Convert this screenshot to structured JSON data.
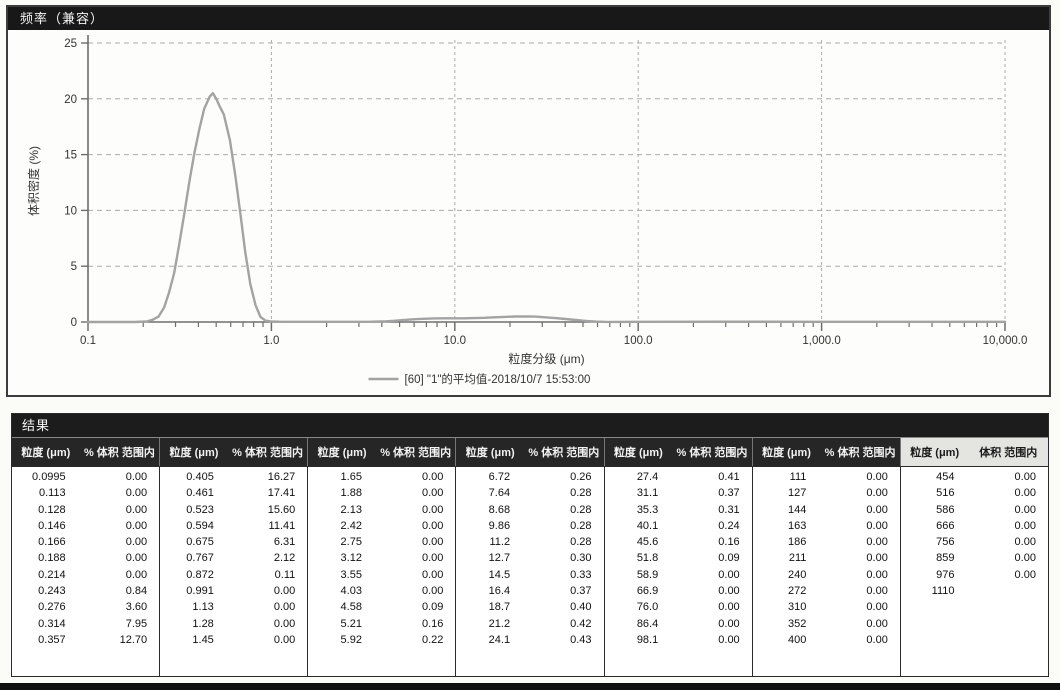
{
  "chart": {
    "title": "频率（兼容）",
    "y_axis_label": "体积密度 (%)",
    "x_axis_label": "粒度分级 (μm)",
    "legend_label": "[60] \"1\"的平均值-2018/10/7 15:53:00",
    "curve_color": "#a3a3a3",
    "grid_color": "#ababab",
    "axis_color": "#6e6e6e",
    "y_ticks": [
      0,
      5,
      10,
      15,
      20,
      25
    ],
    "x_tick_labels": [
      "0.1",
      "1.0",
      "10.0",
      "100.0",
      "1,000.0",
      "10,000.0"
    ],
    "x_tick_values": [
      0.1,
      1,
      10,
      100,
      1000,
      10000
    ]
  },
  "chart_data": {
    "type": "line",
    "title": "频率（兼容）",
    "xlabel": "粒度分级 (μm)",
    "ylabel": "体积密度 (%)",
    "x_scale": "log",
    "xlim": [
      0.1,
      10000
    ],
    "ylim": [
      0,
      25
    ],
    "grid": true,
    "legend_position": "bottom",
    "series": [
      {
        "name": "[60] \"1\"的平均值-2018/10/7 15:53:00",
        "x": [
          0.1,
          0.18,
          0.21,
          0.225,
          0.243,
          0.26,
          0.276,
          0.295,
          0.314,
          0.335,
          0.357,
          0.38,
          0.405,
          0.43,
          0.461,
          0.48,
          0.5,
          0.523,
          0.55,
          0.594,
          0.635,
          0.675,
          0.72,
          0.767,
          0.82,
          0.872,
          0.93,
          0.991,
          1.1,
          1.3,
          1.65,
          2.5,
          3.5,
          4.2,
          4.58,
          5.21,
          5.92,
          6.72,
          7.64,
          8.68,
          9.86,
          11.2,
          12.7,
          14.5,
          16.4,
          18.7,
          21.2,
          24.1,
          27.4,
          31.1,
          35.3,
          40.1,
          45.6,
          51.8,
          58.9,
          66.9,
          76,
          100,
          300,
          1000,
          3000,
          10000
        ],
        "y": [
          0,
          0,
          0.05,
          0.2,
          0.5,
          1.3,
          2.6,
          4.4,
          6.9,
          9.7,
          12.6,
          15.1,
          17.3,
          19.1,
          20.2,
          20.5,
          20.0,
          19.3,
          18.6,
          16.3,
          13.2,
          9.9,
          6.3,
          3.4,
          1.5,
          0.45,
          0.12,
          0.05,
          0.03,
          0.02,
          0.02,
          0.02,
          0.03,
          0.06,
          0.1,
          0.17,
          0.24,
          0.29,
          0.32,
          0.33,
          0.33,
          0.33,
          0.35,
          0.38,
          0.42,
          0.46,
          0.49,
          0.5,
          0.48,
          0.42,
          0.35,
          0.27,
          0.18,
          0.1,
          0.04,
          0.01,
          0.01,
          0.02,
          0.03,
          0.02,
          0.02,
          0.02
        ]
      }
    ]
  },
  "results": {
    "title": "结果",
    "size_header": "粒度 (μm)",
    "pct_header": "% 体积 范围内",
    "pct_header_last": "体积 范围内",
    "groups": [
      {
        "rows": [
          [
            "0.0995",
            "0.00"
          ],
          [
            "0.113",
            "0.00"
          ],
          [
            "0.128",
            "0.00"
          ],
          [
            "0.146",
            "0.00"
          ],
          [
            "0.166",
            "0.00"
          ],
          [
            "0.188",
            "0.00"
          ],
          [
            "0.214",
            "0.00"
          ],
          [
            "0.243",
            "0.84"
          ],
          [
            "0.276",
            "3.60"
          ],
          [
            "0.314",
            "7.95"
          ],
          [
            "0.357",
            "12.70"
          ]
        ]
      },
      {
        "rows": [
          [
            "0.405",
            "16.27"
          ],
          [
            "0.461",
            "17.41"
          ],
          [
            "0.523",
            "15.60"
          ],
          [
            "0.594",
            "11.41"
          ],
          [
            "0.675",
            "6.31"
          ],
          [
            "0.767",
            "2.12"
          ],
          [
            "0.872",
            "0.11"
          ],
          [
            "0.991",
            "0.00"
          ],
          [
            "1.13",
            "0.00"
          ],
          [
            "1.28",
            "0.00"
          ],
          [
            "1.45",
            "0.00"
          ]
        ]
      },
      {
        "rows": [
          [
            "1.65",
            "0.00"
          ],
          [
            "1.88",
            "0.00"
          ],
          [
            "2.13",
            "0.00"
          ],
          [
            "2.42",
            "0.00"
          ],
          [
            "2.75",
            "0.00"
          ],
          [
            "3.12",
            "0.00"
          ],
          [
            "3.55",
            "0.00"
          ],
          [
            "4.03",
            "0.00"
          ],
          [
            "4.58",
            "0.09"
          ],
          [
            "5.21",
            "0.16"
          ],
          [
            "5.92",
            "0.22"
          ]
        ]
      },
      {
        "rows": [
          [
            "6.72",
            "0.26"
          ],
          [
            "7.64",
            "0.28"
          ],
          [
            "8.68",
            "0.28"
          ],
          [
            "9.86",
            "0.28"
          ],
          [
            "11.2",
            "0.28"
          ],
          [
            "12.7",
            "0.30"
          ],
          [
            "14.5",
            "0.33"
          ],
          [
            "16.4",
            "0.37"
          ],
          [
            "18.7",
            "0.40"
          ],
          [
            "21.2",
            "0.42"
          ],
          [
            "24.1",
            "0.43"
          ]
        ]
      },
      {
        "rows": [
          [
            "27.4",
            "0.41"
          ],
          [
            "31.1",
            "0.37"
          ],
          [
            "35.3",
            "0.31"
          ],
          [
            "40.1",
            "0.24"
          ],
          [
            "45.6",
            "0.16"
          ],
          [
            "51.8",
            "0.09"
          ],
          [
            "58.9",
            "0.00"
          ],
          [
            "66.9",
            "0.00"
          ],
          [
            "76.0",
            "0.00"
          ],
          [
            "86.4",
            "0.00"
          ],
          [
            "98.1",
            "0.00"
          ]
        ]
      },
      {
        "rows": [
          [
            "111",
            "0.00"
          ],
          [
            "127",
            "0.00"
          ],
          [
            "144",
            "0.00"
          ],
          [
            "163",
            "0.00"
          ],
          [
            "186",
            "0.00"
          ],
          [
            "211",
            "0.00"
          ],
          [
            "240",
            "0.00"
          ],
          [
            "272",
            "0.00"
          ],
          [
            "310",
            "0.00"
          ],
          [
            "352",
            "0.00"
          ],
          [
            "400",
            "0.00"
          ]
        ]
      },
      {
        "rows": [
          [
            "454",
            "0.00"
          ],
          [
            "516",
            "0.00"
          ],
          [
            "586",
            "0.00"
          ],
          [
            "666",
            "0.00"
          ],
          [
            "756",
            "0.00"
          ],
          [
            "859",
            "0.00"
          ],
          [
            "976",
            "0.00"
          ],
          [
            "1110",
            ""
          ]
        ]
      }
    ]
  }
}
